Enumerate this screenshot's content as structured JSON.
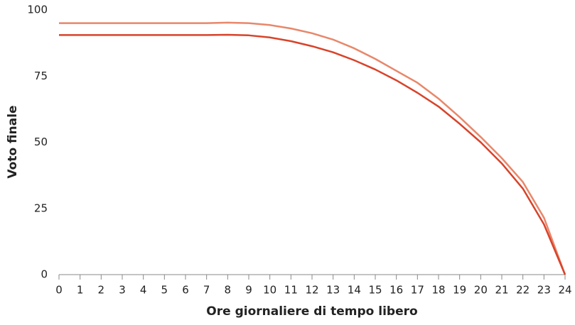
{
  "chart_data": {
    "type": "line",
    "xlabel": "Ore giornaliere di tempo libero",
    "ylabel": "Voto finale",
    "x": [
      0,
      1,
      2,
      3,
      4,
      5,
      6,
      7,
      8,
      9,
      10,
      11,
      12,
      13,
      14,
      15,
      16,
      17,
      18,
      19,
      20,
      21,
      22,
      23,
      24
    ],
    "series": [
      {
        "color": "#e8876a",
        "values": [
          95,
          95,
          95,
          95,
          95,
          95,
          95,
          95,
          95.2,
          95,
          94.3,
          93,
          91.2,
          88.8,
          85.5,
          81.5,
          77,
          72.5,
          66.5,
          59.5,
          52,
          44,
          35,
          21.5,
          0
        ]
      },
      {
        "color": "#d8432a",
        "values": [
          90.5,
          90.5,
          90.5,
          90.5,
          90.5,
          90.5,
          90.5,
          90.5,
          90.6,
          90.4,
          89.6,
          88.2,
          86.3,
          84,
          81,
          77.5,
          73.4,
          68.7,
          63.5,
          57,
          50,
          42,
          32.5,
          19,
          0
        ]
      }
    ],
    "xlim": [
      0,
      24
    ],
    "xticks": [
      0,
      1,
      2,
      3,
      4,
      5,
      6,
      7,
      8,
      9,
      10,
      11,
      12,
      13,
      14,
      15,
      16,
      17,
      18,
      19,
      20,
      21,
      22,
      23,
      24
    ],
    "ylim": [
      0,
      100
    ],
    "yticks": [
      0,
      25,
      50,
      75,
      100
    ]
  }
}
